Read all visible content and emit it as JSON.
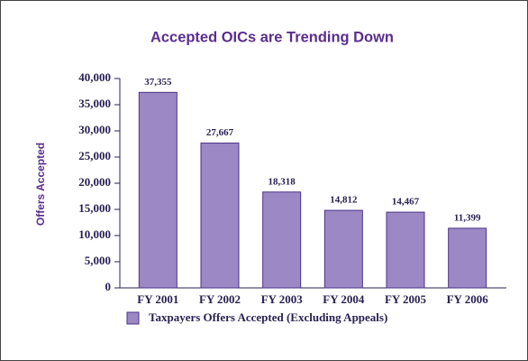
{
  "chart_data": {
    "type": "bar",
    "title": "Accepted OICs are Trending Down",
    "y_label": "Offers Accepted",
    "categories": [
      "FY 2001",
      "FY 2002",
      "FY 2003",
      "FY 2004",
      "FY 2005",
      "FY 2006"
    ],
    "series": [
      {
        "name": "Taxpayers Offers Accepted (Excluding Appeals)",
        "color": "#9b88c4",
        "values": [
          37355,
          27667,
          18318,
          14812,
          14467,
          11399
        ],
        "value_labels": [
          "37,355",
          "27,667",
          "18,318",
          "14,812",
          "14,467",
          "11,399"
        ]
      }
    ],
    "ylim": [
      0,
      40000
    ],
    "yticks": [
      0,
      {
        "value": 5000,
        "label": "5,000"
      },
      {
        "value": 10000,
        "label": "10,000"
      },
      {
        "value": 15000,
        "label": "15,000"
      },
      {
        "value": 20000,
        "label": "20,000"
      },
      {
        "value": 25000,
        "label": "25,000"
      },
      {
        "value": 30000,
        "label": "30,000"
      },
      {
        "value": 35000,
        "label": "35,000"
      },
      {
        "value": 40000,
        "label": "40,000"
      }
    ],
    "grid": false
  }
}
